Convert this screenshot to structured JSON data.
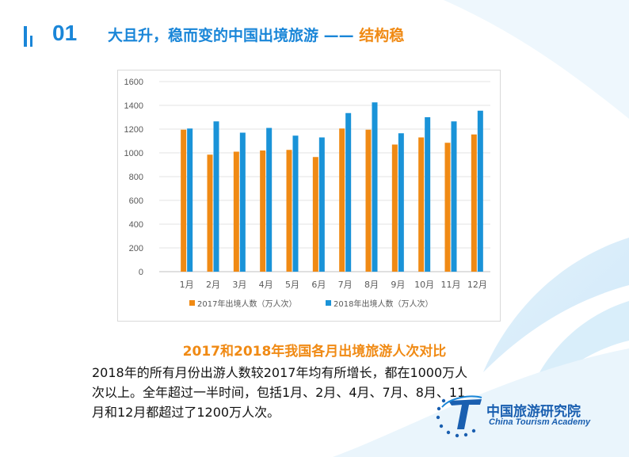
{
  "header": {
    "number": "01",
    "title_main": "大且升，稳而变的中国出境旅游 —— ",
    "title_accent": "结构稳"
  },
  "colors": {
    "series2017": "#f08a14",
    "series2018": "#1a93d8",
    "accent": "#1a86d8"
  },
  "chart_data": {
    "type": "bar",
    "categories": [
      "1月",
      "2月",
      "3月",
      "4月",
      "5月",
      "6月",
      "7月",
      "8月",
      "9月",
      "10月",
      "11月",
      "12月"
    ],
    "series": [
      {
        "name": "2017年出境人数（万人次）",
        "values": [
          1195,
          985,
          1010,
          1020,
          1025,
          965,
          1205,
          1195,
          1070,
          1130,
          1085,
          1155
        ]
      },
      {
        "name": "2018年出境人数（万人次）",
        "values": [
          1205,
          1265,
          1170,
          1210,
          1145,
          1130,
          1335,
          1425,
          1165,
          1300,
          1265,
          1355
        ]
      }
    ],
    "yticks": [
      "0",
      "200",
      "400",
      "600",
      "800",
      "1000",
      "1200",
      "1400",
      "1600"
    ],
    "ylim": [
      0,
      1600
    ],
    "grid": true,
    "legend": "bottom"
  },
  "caption": "2017和2018年我国各月出境旅游人次对比",
  "body": {
    "line1": "2018年的所有月份出游人数较2017年均有所增长，都在1000万人",
    "line2": "次以上。全年超过一半时间，包括1月、2月、4月、7月、8月、11",
    "line3": "月和12月都超过了1200万人次。"
  },
  "logo": {
    "cn": "中国旅游研究院",
    "en": "China Tourism Academy"
  }
}
